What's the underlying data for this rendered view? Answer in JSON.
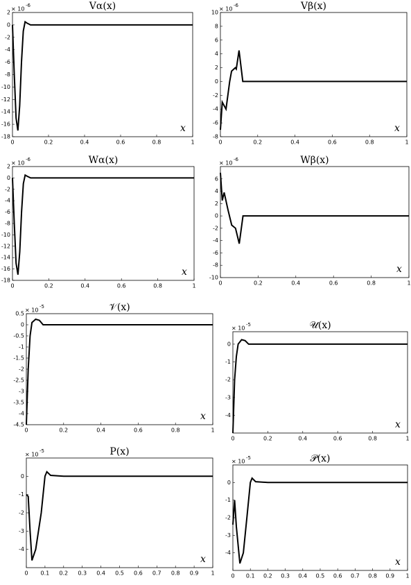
{
  "chart_data": [
    {
      "type": "line",
      "title": "Vα(x)",
      "x_label": "x",
      "y_multiplier": "× 10",
      "y_exponent": "-6",
      "color": "#000000",
      "x": [
        0,
        0.01,
        0.02,
        0.03,
        0.04,
        0.05,
        0.06,
        0.07,
        0.08,
        0.1,
        0.15,
        1
      ],
      "values": [
        0,
        -8,
        -15,
        -17,
        -13,
        -6,
        -1,
        0.5,
        0.3,
        0,
        0,
        0
      ],
      "xlim": [
        0,
        1
      ],
      "ylim": [
        -18,
        2
      ],
      "xticks": [
        0,
        0.2,
        0.4,
        0.6,
        0.8,
        1
      ],
      "yticks": [
        -18,
        -16,
        -14,
        -12,
        -10,
        -8,
        -6,
        -4,
        -2,
        0,
        2
      ]
    },
    {
      "type": "line",
      "title": "Vβ(x)",
      "x_label": "x",
      "y_multiplier": "× 10",
      "y_exponent": "-6",
      "color": "#000000",
      "x": [
        0,
        0.01,
        0.03,
        0.05,
        0.06,
        0.08,
        0.085,
        0.1,
        0.12,
        0.15,
        1
      ],
      "values": [
        -7,
        -3,
        -4,
        0,
        1.5,
        2,
        1.8,
        4.5,
        0,
        0,
        0
      ],
      "xlim": [
        0,
        1
      ],
      "ylim": [
        -8,
        10
      ],
      "xticks": [
        0,
        0.2,
        0.4,
        0.6,
        0.8,
        1
      ],
      "yticks": [
        -8,
        -6,
        -4,
        -2,
        0,
        2,
        4,
        6,
        8,
        10
      ]
    },
    {
      "type": "line",
      "title": "Wα(x)",
      "x_label": "x",
      "y_multiplier": "× 10",
      "y_exponent": "-6",
      "color": "#000000",
      "x": [
        0,
        0.01,
        0.02,
        0.03,
        0.04,
        0.05,
        0.06,
        0.07,
        0.08,
        0.1,
        0.15,
        1
      ],
      "values": [
        0,
        -8,
        -15,
        -17,
        -13,
        -6,
        -1,
        0.5,
        0.3,
        0,
        0,
        0
      ],
      "xlim": [
        0,
        1
      ],
      "ylim": [
        -18,
        2
      ],
      "xticks": [
        0,
        0.2,
        0.4,
        0.6,
        0.8,
        1
      ],
      "yticks": [
        -18,
        -16,
        -14,
        -12,
        -10,
        -8,
        -6,
        -4,
        -2,
        0,
        2
      ]
    },
    {
      "type": "line",
      "title": "Wβ(x)",
      "x_label": "x",
      "y_multiplier": "× 10",
      "y_exponent": "-6",
      "color": "#000000",
      "x": [
        0,
        0.01,
        0.02,
        0.04,
        0.06,
        0.08,
        0.1,
        0.12,
        0.15,
        1
      ],
      "values": [
        7,
        2.5,
        3.8,
        1,
        -1.5,
        -2,
        -4.5,
        0,
        0,
        0
      ],
      "xlim": [
        0,
        1
      ],
      "ylim": [
        -10,
        8
      ],
      "xticks": [
        0,
        0.2,
        0.4,
        0.6,
        0.8,
        1
      ],
      "yticks": [
        -10,
        -8,
        -6,
        -4,
        -2,
        0,
        2,
        4,
        6
      ]
    },
    {
      "type": "line",
      "title": "𝒱(x)",
      "x_label": "x",
      "y_multiplier": "× 10",
      "y_exponent": "-5",
      "color": "#000000",
      "x": [
        0,
        0.01,
        0.02,
        0.03,
        0.05,
        0.07,
        0.09,
        0.1,
        1
      ],
      "values": [
        -4.5,
        -2,
        -0.5,
        0.1,
        0.25,
        0.2,
        0,
        0,
        0
      ],
      "xlim": [
        0,
        1
      ],
      "ylim": [
        -4.5,
        0.5
      ],
      "xticks": [
        0,
        0.2,
        0.4,
        0.6,
        0.8,
        1
      ],
      "yticks": [
        -4.5,
        -4,
        -3.5,
        -3,
        -2.5,
        -2,
        -1.5,
        -1,
        -0.5,
        0,
        0.5
      ]
    },
    {
      "type": "line",
      "title": "𝒰(x)",
      "x_label": "x",
      "y_multiplier": "× 10",
      "y_exponent": "-5",
      "color": "#000000",
      "x": [
        0,
        0.01,
        0.02,
        0.03,
        0.05,
        0.07,
        0.09,
        1
      ],
      "values": [
        -5,
        -2,
        -0.7,
        0,
        0.25,
        0.2,
        0,
        0
      ],
      "xlim": [
        0,
        1
      ],
      "ylim": [
        -5,
        0.7
      ],
      "xticks": [
        0,
        0.2,
        0.4,
        0.6,
        0.8,
        1
      ],
      "yticks": [
        -4,
        -3,
        -2,
        -1,
        0
      ]
    },
    {
      "type": "line",
      "title": "P(x)",
      "x_label": "x",
      "y_multiplier": "× 10",
      "y_exponent": "-5",
      "color": "#000000",
      "x": [
        0,
        0.01,
        0.02,
        0.03,
        0.05,
        0.08,
        0.1,
        0.11,
        0.13,
        0.2,
        1
      ],
      "values": [
        -1,
        -1.1,
        -3,
        -4.6,
        -4,
        -2,
        0,
        0.25,
        0.05,
        0,
        0
      ],
      "xlim": [
        0,
        1
      ],
      "ylim": [
        -5,
        1
      ],
      "xticks": [
        0,
        0.1,
        0.2,
        0.3,
        0.4,
        0.5,
        0.6,
        0.7,
        0.8,
        0.9,
        1
      ],
      "yticks": [
        -4,
        -3,
        -2,
        -1,
        0
      ]
    },
    {
      "type": "line",
      "title": "𝒫(x)",
      "x_label": "x",
      "y_multiplier": "× 10",
      "y_exponent": "-5",
      "color": "#000000",
      "x": [
        0,
        0.01,
        0.02,
        0.04,
        0.06,
        0.08,
        0.1,
        0.11,
        0.13,
        0.2,
        1
      ],
      "values": [
        -2.4,
        -1,
        -2.5,
        -4.6,
        -4,
        -2,
        0,
        0.25,
        0.05,
        0,
        0
      ],
      "xlim": [
        0,
        1
      ],
      "ylim": [
        -5,
        1
      ],
      "xticks": [
        0,
        0.1,
        0.2,
        0.3,
        0.4,
        0.5,
        0.6,
        0.7,
        0.8,
        0.9,
        1
      ],
      "yticks": [
        -4,
        -3,
        -2,
        -1,
        0
      ]
    }
  ]
}
